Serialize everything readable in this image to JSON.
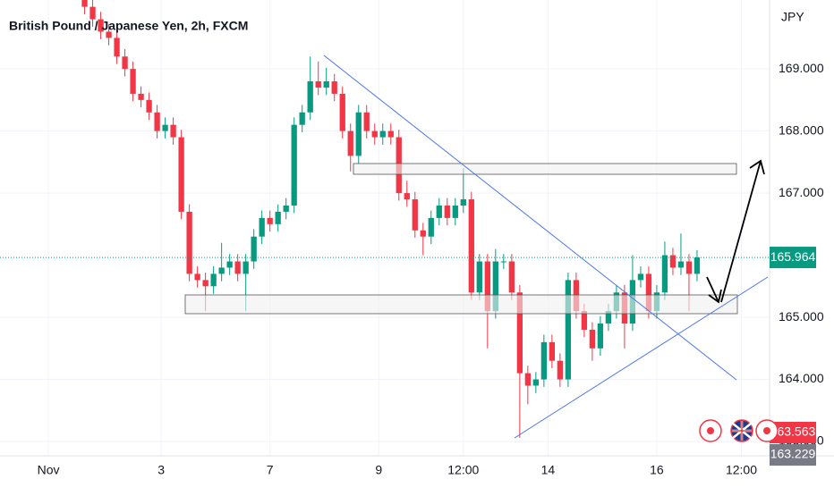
{
  "chart_data": {
    "type": "candlestick",
    "title": "British Pound / Japanese Yen, 2h, FXCM",
    "currency": "JPY",
    "up_color": "#089981",
    "down_color": "#f23645",
    "open": [
      170.2,
      170.0,
      169.8,
      169.6,
      169.5,
      169.2,
      169.0,
      168.6,
      168.5,
      168.3,
      168.0,
      168.1,
      167.9,
      166.7,
      165.7,
      165.6,
      165.5,
      165.7,
      165.8,
      165.9,
      165.7,
      165.9,
      166.3,
      166.6,
      166.5,
      166.7,
      166.8,
      168.1,
      168.3,
      168.8,
      168.7,
      168.8,
      168.6,
      168.0,
      167.6,
      168.3,
      168.0,
      167.9,
      168.0,
      167.9,
      167.0,
      166.9,
      166.4,
      166.3,
      166.6,
      166.8,
      166.6,
      166.8,
      166.9,
      165.4,
      165.9,
      165.1,
      165.9,
      165.9,
      165.4,
      164.1,
      163.9,
      164.0,
      164.6,
      164.3,
      164.0,
      165.6,
      165.1,
      164.8,
      164.5,
      164.9,
      165.1,
      165.4,
      164.9,
      165.6,
      165.7,
      165.1,
      165.4,
      166.0,
      165.8,
      165.9,
      165.7
    ],
    "high": [
      170.32,
      170.12,
      169.92,
      169.72,
      169.62,
      169.32,
      169.12,
      168.72,
      168.62,
      168.42,
      168.22,
      168.22,
      168.02,
      166.82,
      165.82,
      165.72,
      165.82,
      166.2,
      166.02,
      166.02,
      166.02,
      166.42,
      166.72,
      166.72,
      166.82,
      166.92,
      168.22,
      168.42,
      169.2,
      169.12,
      169.02,
      168.92,
      168.72,
      168.12,
      168.42,
      168.42,
      168.12,
      168.12,
      168.12,
      168.02,
      167.2,
      167.02,
      166.52,
      166.72,
      166.92,
      166.92,
      166.92,
      167.4,
      167.02,
      166.02,
      166.02,
      166.1,
      166.02,
      166.02,
      165.52,
      164.22,
      164.12,
      164.72,
      164.72,
      164.42,
      165.72,
      165.72,
      165.22,
      164.92,
      165.02,
      165.22,
      165.52,
      165.52,
      166.0,
      165.82,
      165.82,
      165.52,
      166.22,
      166.12,
      166.35,
      166.02,
      166.08
    ],
    "low": [
      169.88,
      169.68,
      169.48,
      169.38,
      169.08,
      168.88,
      168.48,
      168.38,
      168.18,
      167.88,
      167.88,
      167.78,
      166.58,
      165.58,
      165.48,
      165.1,
      165.38,
      165.58,
      165.68,
      165.58,
      165.1,
      165.78,
      166.18,
      166.38,
      166.38,
      166.58,
      166.68,
      167.98,
      168.18,
      168.58,
      168.58,
      168.48,
      167.88,
      167.35,
      167.48,
      167.88,
      167.78,
      167.78,
      167.78,
      166.88,
      166.78,
      166.28,
      166.0,
      166.18,
      166.48,
      166.48,
      166.48,
      166.68,
      165.28,
      165.28,
      164.5,
      164.98,
      165.78,
      165.28,
      163.06,
      163.6,
      163.78,
      163.88,
      164.18,
      163.88,
      163.88,
      164.98,
      164.68,
      164.3,
      164.38,
      164.78,
      164.98,
      164.5,
      164.78,
      165.48,
      164.98,
      164.98,
      165.28,
      165.68,
      165.68,
      165.1,
      165.58
    ],
    "close": [
      170.0,
      169.8,
      169.6,
      169.5,
      169.2,
      169.0,
      168.6,
      168.5,
      168.3,
      168.0,
      168.1,
      167.9,
      166.7,
      165.7,
      165.6,
      165.5,
      165.7,
      165.8,
      165.9,
      165.7,
      165.9,
      166.3,
      166.6,
      166.5,
      166.7,
      166.8,
      168.1,
      168.3,
      168.8,
      168.7,
      168.8,
      168.6,
      168.0,
      167.6,
      168.3,
      168.0,
      167.9,
      168.0,
      167.9,
      167.0,
      166.9,
      166.4,
      166.3,
      166.6,
      166.8,
      166.6,
      166.8,
      166.9,
      165.4,
      165.9,
      165.1,
      165.9,
      165.9,
      165.4,
      164.1,
      163.9,
      164.0,
      164.6,
      164.3,
      164.0,
      165.6,
      165.1,
      164.8,
      164.5,
      164.9,
      165.1,
      165.4,
      164.9,
      165.6,
      165.7,
      165.1,
      165.4,
      166.0,
      165.8,
      165.9,
      165.7,
      165.964
    ],
    "last_price": 165.964,
    "price_tags": [
      163.563,
      163.229
    ],
    "ylim": [
      162.77,
      170.11
    ],
    "yticks": [
      {
        "value": 163,
        "label": "163.000"
      },
      {
        "value": 164,
        "label": "164.000"
      },
      {
        "value": 165,
        "label": "165.000"
      },
      {
        "value": 167,
        "label": "167.000"
      },
      {
        "value": 168,
        "label": "168.000"
      },
      {
        "value": 169,
        "label": "169.000"
      }
    ],
    "xlim": [
      -10.5,
      85
    ],
    "xticks": [
      {
        "value": -4.5,
        "label": "Nov"
      },
      {
        "value": 9.5,
        "label": "3"
      },
      {
        "value": 23,
        "label": "7"
      },
      {
        "value": 36.5,
        "label": "9"
      },
      {
        "value": 47,
        "label": "12:00"
      },
      {
        "value": 57.5,
        "label": "14"
      },
      {
        "value": 71,
        "label": "16"
      },
      {
        "value": 81.5,
        "label": "12:00"
      }
    ],
    "grid": true
  }
}
